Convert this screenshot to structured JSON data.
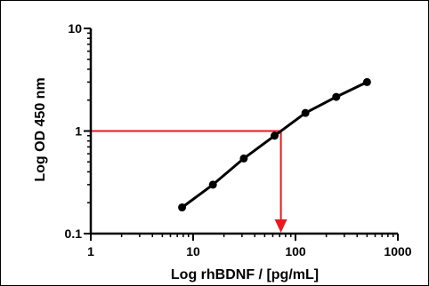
{
  "chart_data": {
    "type": "line",
    "xlabel": "Log rhBDNF / [pg/mL]",
    "ylabel": "Log OD 450 nm",
    "x_scale": "log",
    "y_scale": "log",
    "xlim": [
      1,
      1000
    ],
    "ylim": [
      0.1,
      10
    ],
    "x_ticks": [
      "1",
      "10",
      "100",
      "1000"
    ],
    "y_ticks": [
      "0.1",
      "1",
      "10"
    ],
    "grid": false,
    "series": [
      {
        "color": "#000000",
        "x": [
          7.8,
          15.6,
          31.25,
          62.5,
          125,
          250,
          500
        ],
        "y": [
          0.18,
          0.3,
          0.54,
          0.9,
          1.5,
          2.15,
          3.0
        ]
      }
    ],
    "annotation": {
      "color": "#e8191f",
      "y_level": 1,
      "x_value": 72
    }
  }
}
